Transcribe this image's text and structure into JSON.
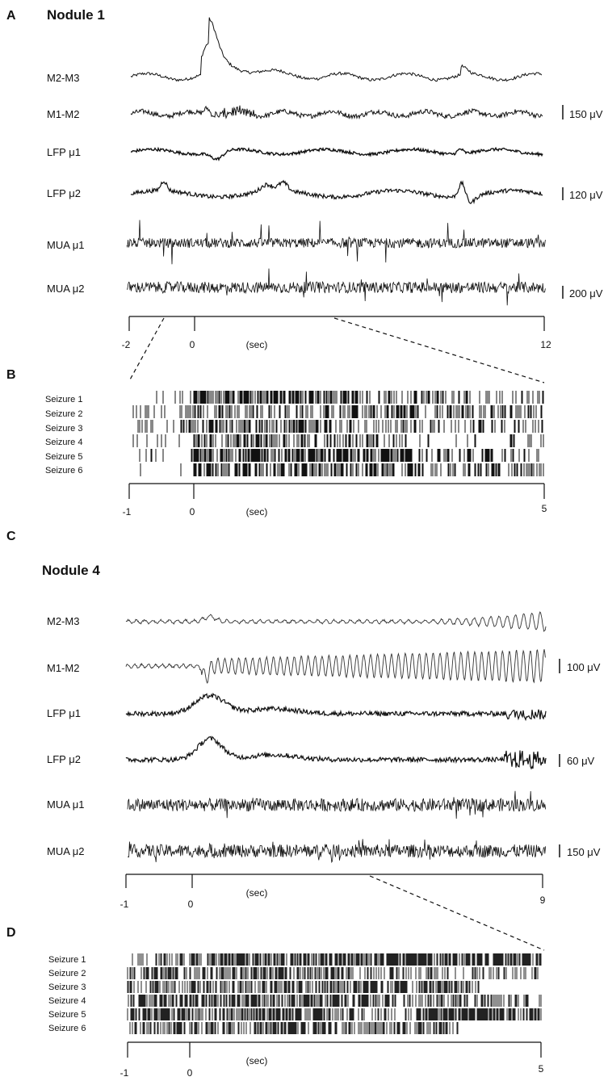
{
  "figure": {
    "panels": [
      {
        "letter": "A",
        "title": "Nodule 1",
        "traces": [
          {
            "label": "M2-M3",
            "kind": "eeg_transient"
          },
          {
            "label": "M1-M2",
            "kind": "eeg_small"
          },
          {
            "label": "LFP μ1",
            "kind": "lfp_small"
          },
          {
            "label": "LFP μ2",
            "kind": "lfp_bumpy"
          },
          {
            "label": "MUA μ1",
            "kind": "mua"
          },
          {
            "label": "MUA μ2",
            "kind": "mua"
          }
        ],
        "scale_bars": [
          {
            "label": "150 μV",
            "beside_trace": 1
          },
          {
            "label": "120 μV",
            "beside_trace": 3
          },
          {
            "label": "200 μV",
            "beside_trace": 5
          }
        ],
        "time_axis": {
          "min": -2,
          "max": 12,
          "tick_labels": [
            "-2",
            "0",
            "12"
          ],
          "tick_values": [
            -2,
            0,
            12
          ],
          "unit_label": "(sec)"
        },
        "zoom_window_sec": [
          -1,
          5
        ]
      },
      {
        "letter": "B",
        "seizure_labels": [
          "Seizure 1",
          "Seizure 2",
          "Seizure 3",
          "Seizure 4",
          "Seizure 5",
          "Seizure 6"
        ],
        "time_axis": {
          "min": -1,
          "max": 5,
          "tick_labels": [
            "-1",
            "0",
            "5"
          ],
          "tick_values": [
            -1,
            0,
            5
          ],
          "unit_label": "(sec)"
        }
      },
      {
        "letter": "C",
        "title": "Nodule 4",
        "traces": [
          {
            "label": "M2-M3",
            "kind": "osc_small"
          },
          {
            "label": "M1-M2",
            "kind": "osc_large"
          },
          {
            "label": "LFP μ1",
            "kind": "lfp_hump"
          },
          {
            "label": "LFP μ2",
            "kind": "lfp_hump"
          },
          {
            "label": "MUA μ1",
            "kind": "mua"
          },
          {
            "label": "MUA μ2",
            "kind": "mua"
          }
        ],
        "scale_bars": [
          {
            "label": "100 μV",
            "beside_trace": 1
          },
          {
            "label": "60 μV",
            "beside_trace": 3
          },
          {
            "label": "150 μV",
            "beside_trace": 5
          }
        ],
        "time_axis": {
          "min": -1,
          "max": 9,
          "tick_labels": [
            "-1",
            "0",
            "9"
          ],
          "tick_values": [
            -1,
            0,
            9
          ],
          "unit_label": "(sec)"
        },
        "zoom_window_sec": [
          5,
          9
        ]
      },
      {
        "letter": "D",
        "seizure_labels": [
          "Seizure 1",
          "Seizure 2",
          "Seizure 3",
          "Seizure 4",
          "Seizure 5",
          "Seizure 6"
        ],
        "time_axis": {
          "min": -1,
          "max": 5,
          "tick_labels": [
            "-1",
            "0",
            "5"
          ],
          "tick_values": [
            -1,
            0,
            5
          ],
          "unit_label": "(sec)"
        }
      }
    ]
  }
}
